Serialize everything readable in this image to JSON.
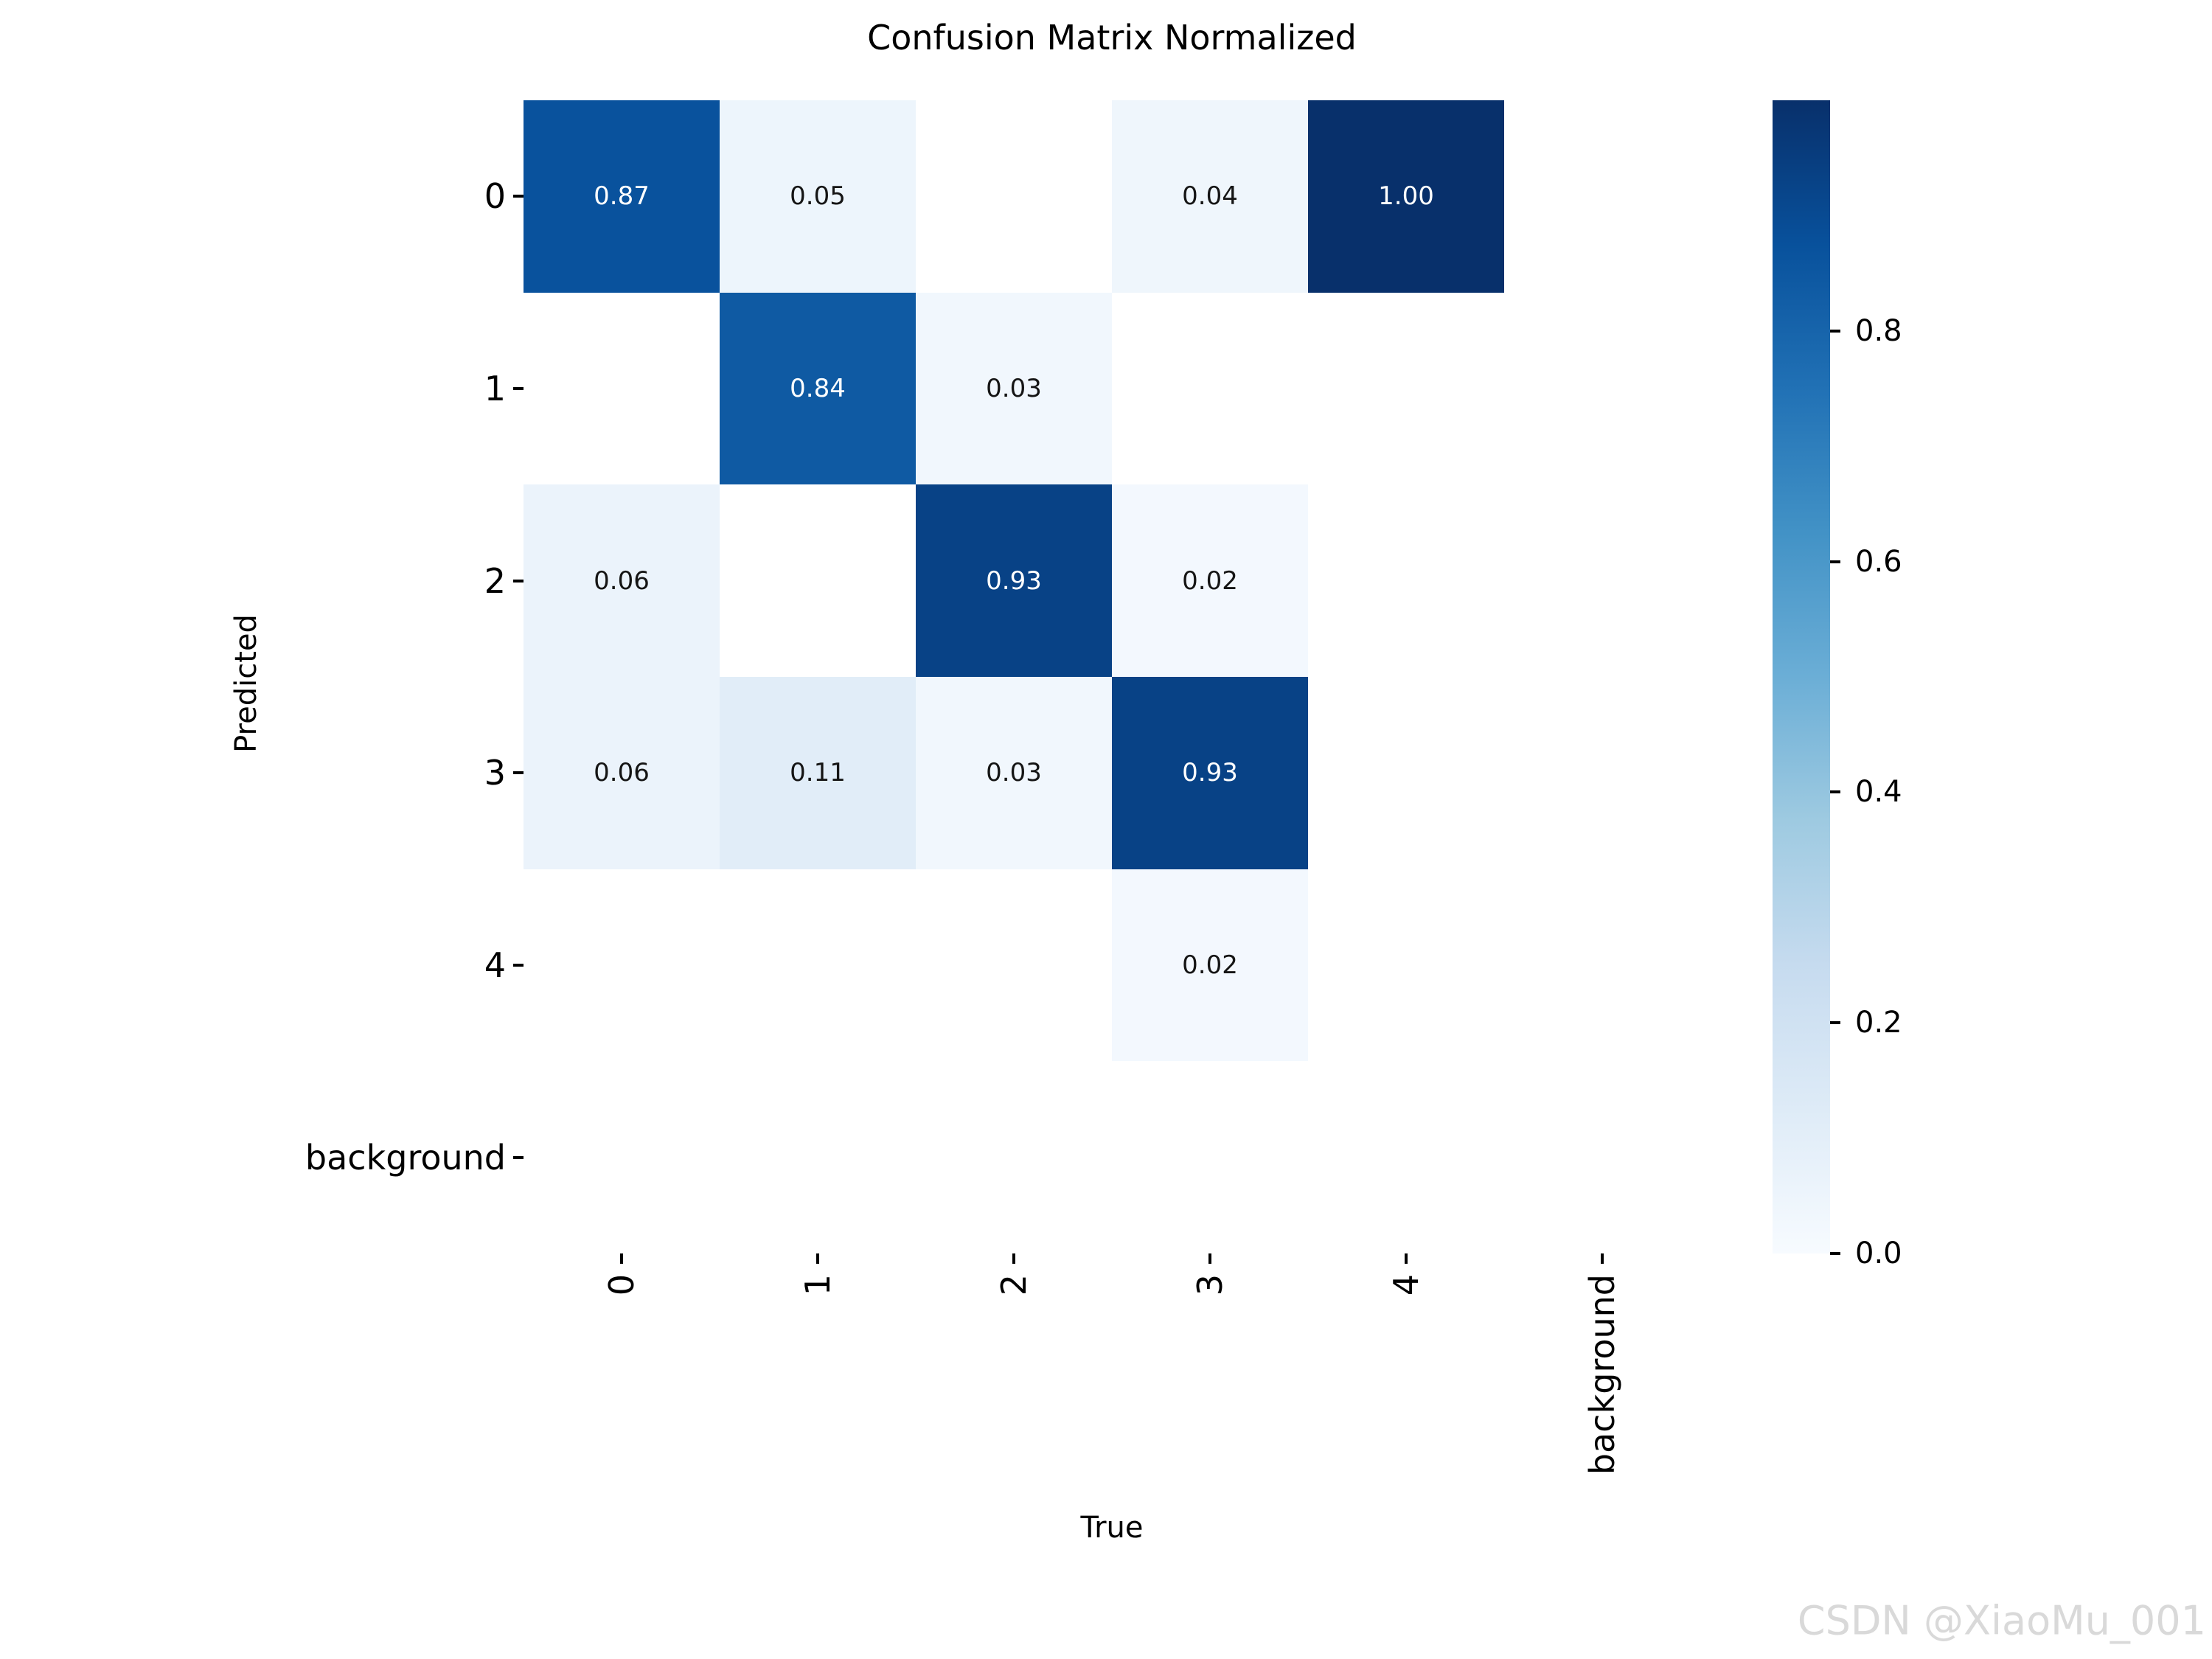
{
  "page": {
    "background": "#ffffff",
    "watermark": "CSDN @XiaoMu_001",
    "watermark_color": "#d9d9d9"
  },
  "chart_data": {
    "type": "heatmap",
    "title": "Confusion Matrix Normalized",
    "xlabel": "True",
    "ylabel": "Predicted",
    "x_categories": [
      "0",
      "1",
      "2",
      "3",
      "4",
      "background"
    ],
    "y_categories": [
      "0",
      "1",
      "2",
      "3",
      "4",
      "background"
    ],
    "rows": [
      [
        0.87,
        0.05,
        null,
        0.04,
        1.0,
        null
      ],
      [
        null,
        0.84,
        0.03,
        null,
        null,
        null
      ],
      [
        0.06,
        null,
        0.93,
        0.02,
        null,
        null
      ],
      [
        0.06,
        0.11,
        0.03,
        0.93,
        null,
        null
      ],
      [
        null,
        null,
        null,
        0.02,
        null,
        null
      ],
      [
        null,
        null,
        null,
        null,
        null,
        null
      ]
    ],
    "annotation_format": "two_decimals",
    "colormap": "Blues",
    "vmin": 0.0,
    "vmax": 1.0,
    "grid": false,
    "legend_position": "right-colorbar",
    "colorbar": {
      "tick_values": [
        0.8,
        0.6,
        0.4,
        0.2,
        0.0
      ],
      "tick_labels": [
        "0.8",
        "0.6",
        "0.4",
        "0.2",
        "0.0"
      ]
    },
    "colors": {
      "cmap_low": "#f7fbff",
      "cmap_high": "#08306b",
      "empty_cell": "#ffffff",
      "annotation_dark": "#151515",
      "annotation_light": "#ffffff",
      "tick": "#000000"
    }
  }
}
